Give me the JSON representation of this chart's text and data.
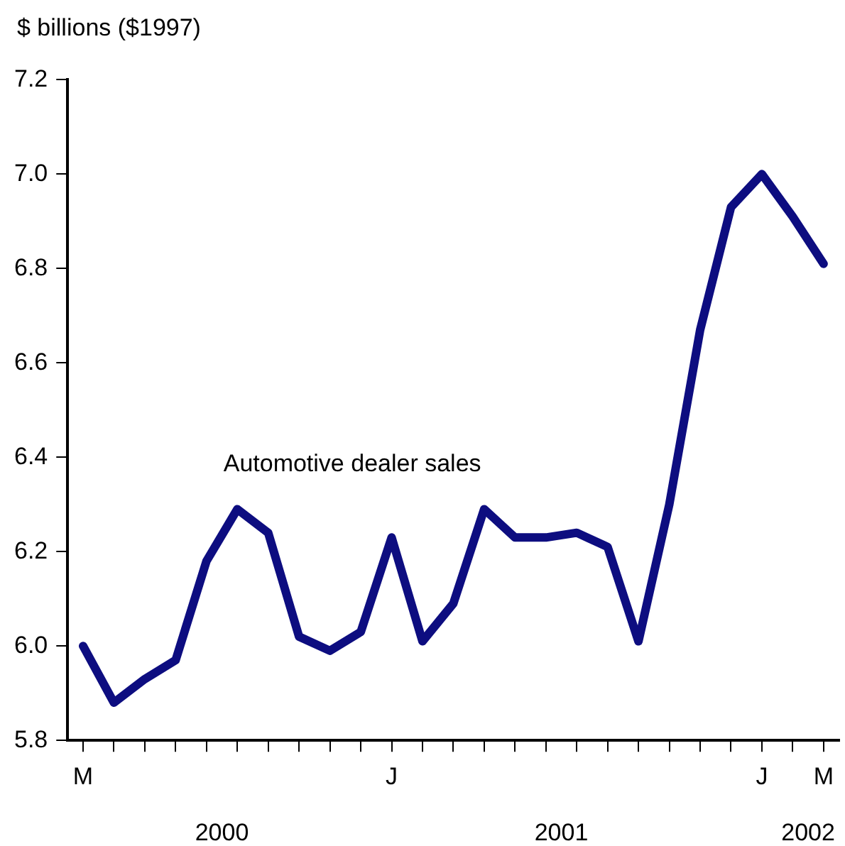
{
  "chart_data": {
    "type": "line",
    "ylabel": "$ billions ($1997)",
    "categories": [
      "M",
      null,
      null,
      null,
      null,
      null,
      null,
      null,
      null,
      null,
      "J",
      null,
      null,
      null,
      null,
      null,
      null,
      null,
      null,
      null,
      null,
      null,
      "J",
      null,
      "M"
    ],
    "series": [
      {
        "name": "Automotive dealer sales",
        "color": "#0d0d80",
        "values": [
          6.0,
          5.88,
          5.93,
          5.97,
          6.18,
          6.29,
          6.24,
          6.02,
          5.99,
          6.03,
          6.23,
          6.01,
          6.09,
          6.29,
          6.23,
          6.23,
          6.24,
          6.21,
          6.01,
          6.3,
          6.67,
          6.93,
          7.0,
          6.91,
          6.81
        ]
      }
    ],
    "ylim": [
      5.8,
      7.2
    ],
    "yticks": [
      {
        "value": 5.8,
        "label": "5.8"
      },
      {
        "value": 6,
        "label": "6.0"
      },
      {
        "value": 6.2,
        "label": "6.2"
      },
      {
        "value": 6.4,
        "label": "6.4"
      },
      {
        "value": 6.6,
        "label": "6.6"
      },
      {
        "value": 6.8,
        "label": "6.8"
      },
      {
        "value": 7,
        "label": "7.0"
      },
      {
        "value": 7.2,
        "label": "7.2"
      }
    ],
    "annotations": [
      "2000",
      "2001",
      "2002"
    ],
    "grid": false,
    "legend": false,
    "marker": "none",
    "line_style": "solid"
  }
}
